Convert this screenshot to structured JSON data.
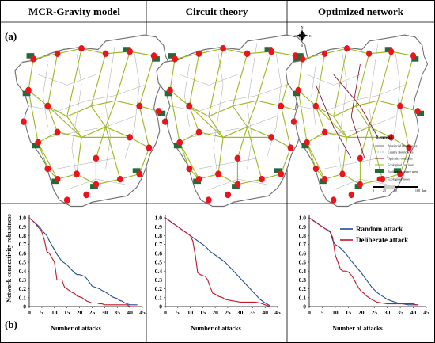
{
  "figure": {
    "panel_titles": [
      "MCR-Gravity model",
      "Circuit theory",
      "Optimized network"
    ],
    "label_a": "(a)",
    "label_b": "(b)"
  },
  "map_legend": {
    "title": "Lengend",
    "items": [
      {
        "label": "Provincial Boundaries"
      },
      {
        "label": "County Boundaries"
      },
      {
        "label": "Optimize corridors"
      },
      {
        "label": "Ecological corridors"
      },
      {
        "label": "Ecological source area"
      },
      {
        "label": "Ecological nodes"
      }
    ],
    "scale_labels": [
      "0",
      "25",
      "50",
      "100"
    ],
    "scale_unit": "km",
    "north_letters": [
      "N",
      "S",
      "W",
      "E"
    ]
  },
  "colors": {
    "random": "#1f4e96",
    "deliberate": "#c0182c",
    "corridor": "#9ab821",
    "optimized": "#8b1a3a",
    "node": "#e8141e",
    "source": "#1f6b3a",
    "boundary": "#9a9a9a"
  },
  "chart_data": [
    {
      "type": "line",
      "ylabel": "Network connectivity robustness",
      "xlabel": "Number of attacks",
      "xlim": [
        0,
        45
      ],
      "ylim": [
        0,
        1.0
      ],
      "xticks": [
        0,
        5,
        10,
        15,
        20,
        25,
        30,
        35,
        40,
        45
      ],
      "yticks": [
        0,
        0.1,
        0.2,
        0.3,
        0.4,
        0.5,
        0.6,
        0.7,
        0.8,
        0.9,
        1.0
      ],
      "series": [
        {
          "name": "Random attack",
          "x": [
            0,
            2,
            4,
            5,
            6,
            7,
            8,
            9,
            10,
            11,
            12,
            13,
            14,
            15,
            16,
            17,
            18,
            19,
            20,
            21,
            22,
            23,
            24,
            25,
            26,
            27,
            28,
            29,
            30,
            31,
            32,
            33,
            34,
            35,
            36,
            37,
            38,
            39,
            40,
            41,
            42,
            43
          ],
          "y": [
            1.0,
            0.95,
            0.9,
            0.86,
            0.83,
            0.8,
            0.74,
            0.69,
            0.64,
            0.59,
            0.55,
            0.51,
            0.49,
            0.47,
            0.44,
            0.41,
            0.38,
            0.36,
            0.36,
            0.35,
            0.34,
            0.31,
            0.27,
            0.23,
            0.22,
            0.21,
            0.2,
            0.18,
            0.17,
            0.15,
            0.13,
            0.11,
            0.1,
            0.09,
            0.07,
            0.06,
            0.04,
            0.03,
            0.02,
            0.02,
            0.02,
            0.02
          ]
        },
        {
          "name": "Deliberate attack",
          "x": [
            0,
            2,
            4,
            5,
            6,
            7,
            8,
            9,
            10,
            11,
            12,
            13,
            14,
            15,
            16,
            17,
            18,
            19,
            20,
            21,
            22,
            23,
            24,
            25,
            26,
            27,
            28,
            29,
            30,
            31,
            32,
            33,
            34,
            35,
            36,
            37,
            38,
            39,
            40,
            41,
            42,
            43
          ],
          "y": [
            1.0,
            0.95,
            0.88,
            0.84,
            0.75,
            0.62,
            0.6,
            0.55,
            0.5,
            0.3,
            0.3,
            0.3,
            0.22,
            0.2,
            0.18,
            0.16,
            0.15,
            0.12,
            0.11,
            0.1,
            0.08,
            0.06,
            0.05,
            0.04,
            0.04,
            0.04,
            0.03,
            0.03,
            0.02,
            0.02,
            0.02,
            0.02,
            0.02,
            0.02,
            0.02,
            0.02,
            0.02,
            0.02,
            0.0,
            0.0,
            0.0,
            0.0
          ]
        }
      ]
    },
    {
      "type": "line",
      "xlabel": "Number of attacks",
      "xlim": [
        0,
        45
      ],
      "ylim": [
        0,
        1.0
      ],
      "xticks": [
        0,
        5,
        10,
        15,
        20,
        25,
        30,
        35,
        40,
        45
      ],
      "yticks": [
        0,
        0.1,
        0.2,
        0.3,
        0.4,
        0.5,
        0.6,
        0.7,
        0.8,
        0.9,
        1.0
      ],
      "series": [
        {
          "name": "Random attack",
          "x": [
            0,
            5,
            10,
            12,
            14,
            16,
            18,
            20,
            22,
            24,
            26,
            28,
            30,
            32,
            34,
            36,
            38,
            40,
            42
          ],
          "y": [
            1.0,
            0.9,
            0.8,
            0.76,
            0.72,
            0.68,
            0.62,
            0.58,
            0.54,
            0.5,
            0.44,
            0.38,
            0.32,
            0.26,
            0.2,
            0.14,
            0.08,
            0.04,
            0.01
          ]
        },
        {
          "name": "Deliberate attack",
          "x": [
            0,
            5,
            10,
            11,
            12,
            13,
            14,
            15,
            16,
            17,
            18,
            19,
            20,
            21,
            22,
            23,
            24,
            26,
            28,
            30,
            32,
            34,
            36,
            38,
            40,
            41,
            42
          ],
          "y": [
            1.0,
            0.9,
            0.8,
            0.74,
            0.58,
            0.38,
            0.36,
            0.35,
            0.34,
            0.3,
            0.22,
            0.15,
            0.14,
            0.12,
            0.11,
            0.1,
            0.08,
            0.07,
            0.06,
            0.05,
            0.05,
            0.05,
            0.05,
            0.04,
            0.02,
            0.01,
            0.0
          ]
        }
      ]
    },
    {
      "type": "line",
      "xlabel": "Number of attacks",
      "xlim": [
        0,
        45
      ],
      "ylim": [
        0,
        1.0
      ],
      "xticks": [
        0,
        5,
        10,
        15,
        20,
        25,
        30,
        35,
        40,
        45
      ],
      "yticks": [
        0,
        0.1,
        0.2,
        0.3,
        0.4,
        0.5,
        0.6,
        0.7,
        0.8,
        0.9,
        1.0
      ],
      "legend": "top-right",
      "series": [
        {
          "name": "Random attack",
          "x": [
            0,
            2,
            4,
            6,
            8,
            9,
            10,
            12,
            14,
            16,
            18,
            20,
            22,
            24,
            26,
            28,
            30,
            32,
            34,
            36,
            38,
            40,
            42
          ],
          "y": [
            1.0,
            0.96,
            0.92,
            0.88,
            0.85,
            0.75,
            0.7,
            0.66,
            0.6,
            0.52,
            0.45,
            0.38,
            0.3,
            0.22,
            0.16,
            0.12,
            0.08,
            0.06,
            0.04,
            0.03,
            0.02,
            0.02,
            0.02
          ]
        },
        {
          "name": "Deliberate attack",
          "x": [
            0,
            2,
            4,
            6,
            8,
            9,
            10,
            11,
            12,
            13,
            14,
            15,
            16,
            17,
            18,
            19,
            20,
            21,
            22,
            24,
            26,
            28,
            30,
            32,
            34,
            36,
            38,
            40,
            41,
            42
          ],
          "y": [
            1.0,
            0.96,
            0.92,
            0.88,
            0.84,
            0.78,
            0.58,
            0.5,
            0.42,
            0.4,
            0.4,
            0.39,
            0.36,
            0.32,
            0.26,
            0.21,
            0.17,
            0.15,
            0.12,
            0.08,
            0.05,
            0.04,
            0.03,
            0.03,
            0.03,
            0.03,
            0.03,
            0.03,
            0.02,
            0.02
          ]
        }
      ]
    }
  ]
}
